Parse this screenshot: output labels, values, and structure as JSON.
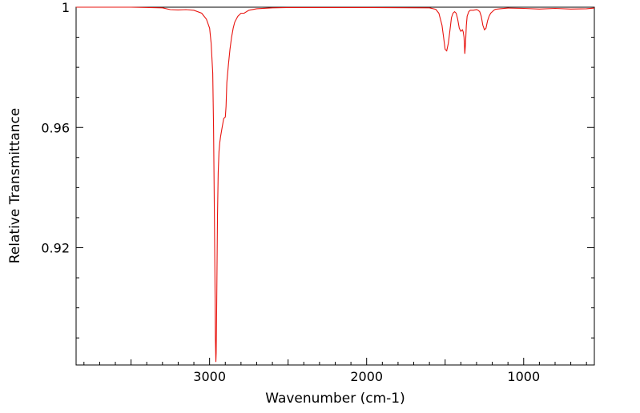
{
  "chart_data": {
    "type": "line",
    "xlabel": "Wavenumber (cm-1)",
    "ylabel": "Relative Transmittance",
    "x_reversed": true,
    "xlim": [
      3850,
      550
    ],
    "ylim": [
      0.881,
      1.0
    ],
    "x_ticks": [
      {
        "value": 3000,
        "label": "3000"
      },
      {
        "value": 2000,
        "label": "2000"
      },
      {
        "value": 1000,
        "label": "1000"
      }
    ],
    "y_ticks": [
      {
        "value": 1.0,
        "label": "1"
      },
      {
        "value": 0.96,
        "label": "0.96"
      },
      {
        "value": 0.92,
        "label": "0.92"
      }
    ],
    "grid": false,
    "line_color": "#e8140f",
    "series": [
      {
        "x": [
          3850,
          3500,
          3300,
          3250,
          3200,
          3150,
          3100,
          3050,
          3020,
          3000,
          2990,
          2980,
          2975,
          2970,
          2965,
          2963,
          2960,
          2958,
          2955,
          2950,
          2945,
          2940,
          2935,
          2930,
          2920,
          2910,
          2900,
          2895,
          2890,
          2880,
          2870,
          2860,
          2850,
          2840,
          2820,
          2800,
          2780,
          2750,
          2700,
          2600,
          2500,
          2000,
          1600,
          1560,
          1540,
          1520,
          1510,
          1500,
          1490,
          1480,
          1470,
          1460,
          1450,
          1440,
          1430,
          1420,
          1410,
          1400,
          1390,
          1385,
          1380,
          1378,
          1375,
          1370,
          1365,
          1360,
          1350,
          1340,
          1320,
          1300,
          1290,
          1280,
          1270,
          1260,
          1250,
          1240,
          1230,
          1220,
          1210,
          1200,
          1190,
          1180,
          1150,
          1100,
          1000,
          900,
          800,
          700,
          600,
          550
        ],
        "y": [
          1.0,
          1.0,
          0.9998,
          0.9992,
          0.9991,
          0.9992,
          0.999,
          0.998,
          0.996,
          0.993,
          0.988,
          0.978,
          0.96,
          0.935,
          0.905,
          0.89,
          0.882,
          0.885,
          0.9,
          0.93,
          0.945,
          0.952,
          0.955,
          0.957,
          0.96,
          0.963,
          0.9635,
          0.967,
          0.975,
          0.981,
          0.986,
          0.99,
          0.993,
          0.995,
          0.997,
          0.998,
          0.998,
          0.999,
          0.9995,
          0.9998,
          0.9999,
          0.9999,
          0.9998,
          0.9993,
          0.998,
          0.994,
          0.99,
          0.986,
          0.9855,
          0.988,
          0.992,
          0.9965,
          0.998,
          0.9985,
          0.998,
          0.996,
          0.993,
          0.992,
          0.9925,
          0.9918,
          0.99,
          0.988,
          0.9845,
          0.988,
          0.994,
          0.997,
          0.9985,
          0.999,
          0.999,
          0.9992,
          0.999,
          0.9985,
          0.997,
          0.994,
          0.9925,
          0.993,
          0.9955,
          0.997,
          0.998,
          0.9985,
          0.999,
          0.9993,
          0.9995,
          0.9997,
          0.9996,
          0.9994,
          0.9996,
          0.9994,
          0.9995,
          0.9997
        ]
      }
    ]
  }
}
